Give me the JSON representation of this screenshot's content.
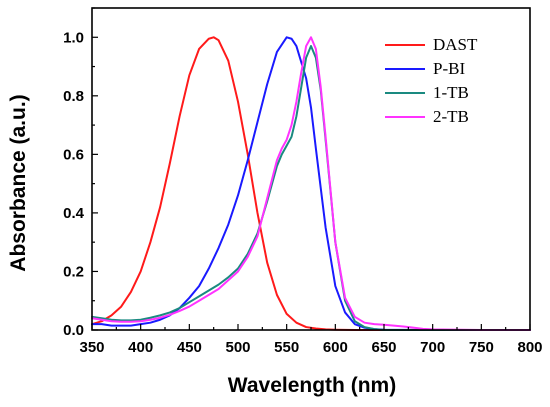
{
  "chart_data": {
    "type": "line",
    "title": "",
    "xlabel": "Wavelength (nm)",
    "ylabel": "Absorbance (a.u.)",
    "xlim": [
      350,
      800
    ],
    "ylim": [
      0.0,
      1.1
    ],
    "x_ticks": [
      350,
      400,
      450,
      500,
      550,
      600,
      650,
      700,
      750,
      800
    ],
    "x_tick_labels": [
      "350",
      "400",
      "450",
      "500",
      "550",
      "600",
      "650",
      "700",
      "750",
      "800"
    ],
    "y_ticks": [
      0.0,
      0.2,
      0.4,
      0.6,
      0.8,
      1.0
    ],
    "y_tick_labels": [
      "0.0",
      "0.2",
      "0.4",
      "0.6",
      "0.8",
      "1.0"
    ],
    "grid": false,
    "legend_position": "top-right",
    "series": [
      {
        "name": "DAST",
        "color": "#ff1a1a",
        "x": [
          350,
          360,
          370,
          380,
          390,
          400,
          410,
          420,
          430,
          440,
          450,
          460,
          470,
          475,
          480,
          490,
          500,
          510,
          520,
          530,
          540,
          550,
          560,
          570,
          580,
          590,
          600,
          620,
          650,
          700,
          750,
          800
        ],
        "y": [
          0.02,
          0.03,
          0.05,
          0.08,
          0.13,
          0.2,
          0.3,
          0.42,
          0.57,
          0.73,
          0.87,
          0.96,
          0.995,
          1.0,
          0.99,
          0.92,
          0.78,
          0.6,
          0.4,
          0.23,
          0.12,
          0.055,
          0.025,
          0.01,
          0.005,
          0.002,
          0.001,
          0.0,
          0.0,
          0.0,
          0.0,
          0.0
        ]
      },
      {
        "name": "P-BI",
        "color": "#1a1aff",
        "x": [
          350,
          360,
          370,
          380,
          390,
          400,
          410,
          420,
          430,
          440,
          450,
          460,
          470,
          480,
          490,
          500,
          510,
          520,
          530,
          540,
          550,
          555,
          560,
          570,
          575,
          580,
          590,
          600,
          610,
          620,
          630,
          640,
          650,
          700,
          750,
          800
        ],
        "y": [
          0.02,
          0.02,
          0.015,
          0.015,
          0.015,
          0.02,
          0.025,
          0.035,
          0.05,
          0.075,
          0.11,
          0.15,
          0.21,
          0.28,
          0.36,
          0.46,
          0.58,
          0.71,
          0.84,
          0.95,
          1.0,
          0.995,
          0.97,
          0.86,
          0.76,
          0.62,
          0.35,
          0.15,
          0.06,
          0.02,
          0.008,
          0.003,
          0.001,
          0.0,
          0.0,
          0.0
        ]
      },
      {
        "name": "1-TB",
        "color": "#1a8a80",
        "x": [
          350,
          360,
          370,
          380,
          390,
          400,
          410,
          420,
          430,
          440,
          450,
          460,
          470,
          480,
          490,
          500,
          510,
          520,
          530,
          540,
          545,
          550,
          555,
          560,
          565,
          570,
          575,
          580,
          585,
          590,
          600,
          610,
          620,
          630,
          640,
          650,
          700,
          750,
          800
        ],
        "y": [
          0.045,
          0.04,
          0.035,
          0.033,
          0.033,
          0.035,
          0.042,
          0.05,
          0.06,
          0.075,
          0.095,
          0.115,
          0.135,
          0.155,
          0.18,
          0.21,
          0.26,
          0.33,
          0.44,
          0.56,
          0.6,
          0.63,
          0.66,
          0.73,
          0.83,
          0.93,
          0.97,
          0.93,
          0.82,
          0.65,
          0.3,
          0.1,
          0.03,
          0.01,
          0.003,
          0.0,
          0.0,
          0.0,
          0.0
        ]
      },
      {
        "name": "2-TB",
        "color": "#ff33ff",
        "x": [
          350,
          360,
          370,
          380,
          390,
          400,
          410,
          420,
          430,
          440,
          450,
          460,
          470,
          480,
          490,
          500,
          510,
          520,
          530,
          540,
          545,
          550,
          555,
          560,
          565,
          570,
          575,
          580,
          585,
          590,
          600,
          610,
          620,
          630,
          640,
          650,
          660,
          670,
          680,
          690,
          700,
          750,
          800
        ],
        "y": [
          0.04,
          0.035,
          0.03,
          0.028,
          0.028,
          0.03,
          0.035,
          0.042,
          0.052,
          0.065,
          0.08,
          0.1,
          0.12,
          0.14,
          0.17,
          0.2,
          0.25,
          0.32,
          0.45,
          0.58,
          0.62,
          0.65,
          0.7,
          0.78,
          0.88,
          0.97,
          1.0,
          0.96,
          0.83,
          0.66,
          0.3,
          0.11,
          0.045,
          0.025,
          0.02,
          0.018,
          0.015,
          0.012,
          0.008,
          0.004,
          0.002,
          0.0,
          0.0
        ]
      }
    ]
  }
}
